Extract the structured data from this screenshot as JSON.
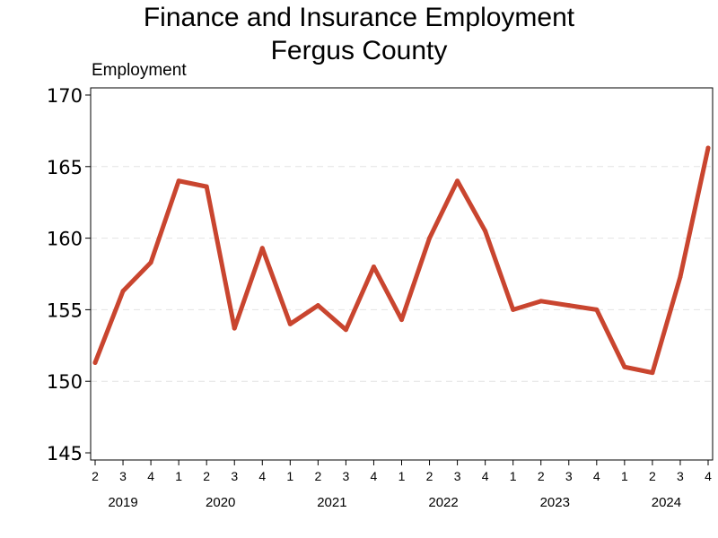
{
  "chart_data": {
    "type": "line",
    "title": "Finance and Insurance Employment",
    "subtitle": "Fergus County",
    "ylabel": "Employment",
    "xlabel": "",
    "ylim": [
      144.5,
      170.5
    ],
    "yticks": [
      145,
      150,
      155,
      160,
      165,
      170
    ],
    "grid": "horizontal dashed",
    "legend": "none",
    "line_color": "#c9452f",
    "x": [
      {
        "year": 2019,
        "quarter": 2
      },
      {
        "year": 2019,
        "quarter": 3
      },
      {
        "year": 2019,
        "quarter": 4
      },
      {
        "year": 2020,
        "quarter": 1
      },
      {
        "year": 2020,
        "quarter": 2
      },
      {
        "year": 2020,
        "quarter": 3
      },
      {
        "year": 2020,
        "quarter": 4
      },
      {
        "year": 2021,
        "quarter": 1
      },
      {
        "year": 2021,
        "quarter": 2
      },
      {
        "year": 2021,
        "quarter": 3
      },
      {
        "year": 2021,
        "quarter": 4
      },
      {
        "year": 2022,
        "quarter": 1
      },
      {
        "year": 2022,
        "quarter": 2
      },
      {
        "year": 2022,
        "quarter": 3
      },
      {
        "year": 2022,
        "quarter": 4
      },
      {
        "year": 2023,
        "quarter": 1
      },
      {
        "year": 2023,
        "quarter": 2
      },
      {
        "year": 2023,
        "quarter": 3
      },
      {
        "year": 2023,
        "quarter": 4
      },
      {
        "year": 2024,
        "quarter": 1
      },
      {
        "year": 2024,
        "quarter": 2
      },
      {
        "year": 2024,
        "quarter": 3
      },
      {
        "year": 2024,
        "quarter": 4
      }
    ],
    "values": [
      151.3,
      156.3,
      158.3,
      164.0,
      163.6,
      153.7,
      159.3,
      154.0,
      155.3,
      153.6,
      158.0,
      154.3,
      160.0,
      164.0,
      160.5,
      155.0,
      155.6,
      155.3,
      155.0,
      151.0,
      150.6,
      157.3,
      166.3
    ],
    "year_labels": [
      "2019",
      "2020",
      "2021",
      "2022",
      "2023",
      "2024"
    ]
  }
}
